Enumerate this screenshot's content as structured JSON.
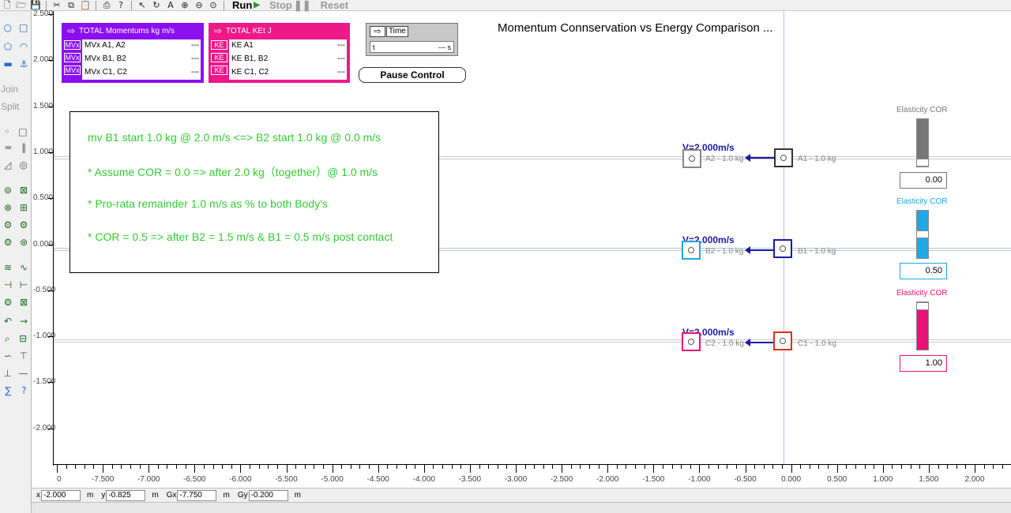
{
  "toolbar": {
    "run": "Run",
    "stop": "Stop",
    "reset": "Reset"
  },
  "palette": {
    "join": "Join",
    "split": "Split"
  },
  "canvas": {
    "title": "Momentum Connservation vs Energy Comparison ..."
  },
  "momentum_meter": {
    "title": "TOTAL Momentums kg m/s",
    "badge": "MVx",
    "rows": [
      {
        "label": "MVx A1, A2",
        "value": "---"
      },
      {
        "label": "MVx B1, B2",
        "value": "---"
      },
      {
        "label": "MVx C1, C2",
        "value": "---"
      }
    ]
  },
  "energy_meter": {
    "title": "TOTAL KEt J",
    "badge": "KE",
    "rows": [
      {
        "label": "KE A1",
        "value": "---"
      },
      {
        "label": "KE B1, B2",
        "value": "---"
      },
      {
        "label": "KE C1, C2",
        "value": "---"
      }
    ]
  },
  "time_meter": {
    "title": "Time",
    "var": "t",
    "value": "--- s"
  },
  "pause_button": "Pause Control",
  "note": {
    "lines": [
      "mv B1 start 1.0 kg @ 2.0 m/s <=> B2 start 1.0 kg @ 0.0 m/s",
      "* Assume COR = 0.0 => after 2.0 kg（together）@ 1.0 m/s",
      "* Pro-rata remainder 1.0 m/s as % to both Body's",
      "* COR = 0.5 => after B2 = 1.5 m/s & B1 = 0.5 m/s post contact"
    ]
  },
  "bodies": {
    "A1": "A1 - 1.0 kg",
    "A2": "A2 - 1.0 kg",
    "B1": "B1 - 1.0 kg",
    "B2": "B2 - 1.0 kg",
    "C1": "C1 - 1.0 kg",
    "C2": "C2 - 1.0 kg",
    "velocity_label": "V=2.000m/s"
  },
  "cor": [
    {
      "title": "Elasticity COR",
      "value": "0.00",
      "fraction": 0.0,
      "color": "#777777"
    },
    {
      "title": "Elasticity COR",
      "value": "0.50",
      "fraction": 0.5,
      "color": "#1ea8e8"
    },
    {
      "title": "Elasticity COR",
      "value": "1.00",
      "fraction": 1.0,
      "color": "#e8127a"
    }
  ],
  "colors": {
    "momentum": "#8b10f0",
    "energy": "#ee1888",
    "A": "#333333",
    "B": "#1a1aa8",
    "C": "#e03010",
    "A2": "#888888",
    "B2": "#1ea8e8",
    "C2": "#e8127a"
  },
  "vruler": [
    "2.500",
    "2.000",
    "1.500",
    "1.000",
    "0.500",
    "0.000",
    "-0.500",
    "-1.000",
    "-1.500",
    "-2.000"
  ],
  "hruler": [
    "0",
    "-7.500",
    "-7.000",
    "-6.500",
    "-6.000",
    "-5.500",
    "-5.000",
    "-4.500",
    "-4.000",
    "-3.500",
    "-3.000",
    "-2.500",
    "-2.000",
    "-1.500",
    "-1.000",
    "-0.500",
    "0.000",
    "0.500",
    "1.000",
    "1.500",
    "2.000",
    "2."
  ],
  "status": {
    "x_label": "x",
    "x": "-2.000",
    "x_unit": "m",
    "y_label": "y",
    "y": "-0.825",
    "y_unit": "m",
    "gx_label": "Gx",
    "gx": "-7.750",
    "gx_unit": "m",
    "gy_label": "Gy",
    "gy": "-0.200",
    "gy_unit": "m"
  }
}
